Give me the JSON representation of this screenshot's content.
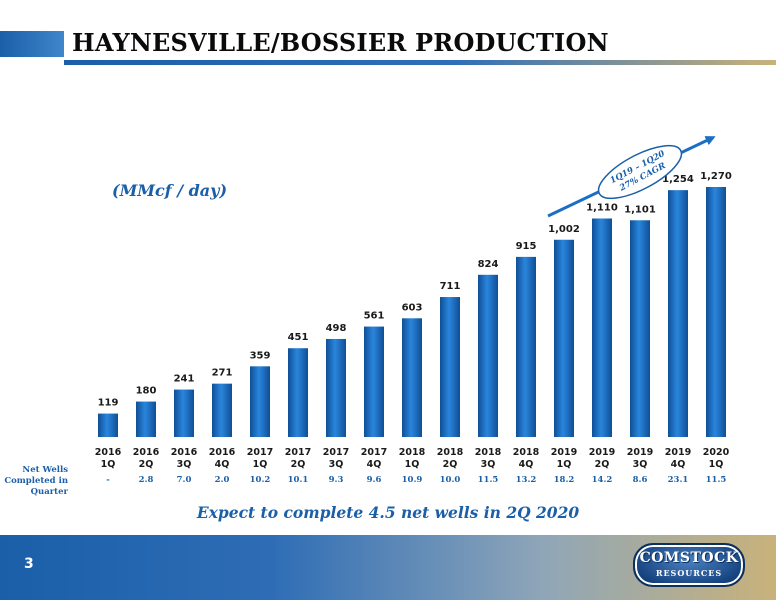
{
  "header": {
    "title": "HAYNESVILLE/BOSSIER PRODUCTION"
  },
  "units_label": "(MMcf / day)",
  "net_wells_label": [
    "Net Wells",
    "Completed in",
    "Quarter"
  ],
  "footnote": "Expect to complete 4.5 net wells in 2Q 2020",
  "page_number": "3",
  "logo": {
    "top": "COMSTOCK",
    "bottom": "RESOURCES"
  },
  "chart_data": {
    "type": "bar",
    "ylabel": "",
    "xlabel": "",
    "ylim": [
      0,
      1400
    ],
    "grid": false,
    "bar_color": "#1a6fc4",
    "categories": [
      [
        "2016",
        "1Q"
      ],
      [
        "2016",
        "2Q"
      ],
      [
        "2016",
        "3Q"
      ],
      [
        "2016",
        "4Q"
      ],
      [
        "2017",
        "1Q"
      ],
      [
        "2017",
        "2Q"
      ],
      [
        "2017",
        "3Q"
      ],
      [
        "2017",
        "4Q"
      ],
      [
        "2018",
        "1Q"
      ],
      [
        "2018",
        "2Q"
      ],
      [
        "2018",
        "3Q"
      ],
      [
        "2018",
        "4Q"
      ],
      [
        "2019",
        "1Q"
      ],
      [
        "2019",
        "2Q"
      ],
      [
        "2019",
        "3Q"
      ],
      [
        "2019",
        "4Q"
      ],
      [
        "2020",
        "1Q"
      ]
    ],
    "values": [
      119,
      180,
      241,
      271,
      359,
      451,
      498,
      561,
      603,
      711,
      824,
      915,
      1002,
      1110,
      1101,
      1254,
      1270
    ],
    "value_labels": [
      "119",
      "180",
      "241",
      "271",
      "359",
      "451",
      "498",
      "561",
      "603",
      "711",
      "824",
      "915",
      "1,002",
      "1,110",
      "1,101",
      "1,254",
      "1,270"
    ],
    "net_wells": [
      "-",
      "2.8",
      "7.0",
      "2.0",
      "10.2",
      "10.1",
      "9.3",
      "9.6",
      "10.9",
      "10.0",
      "11.5",
      "13.2",
      "18.2",
      "14.2",
      "8.6",
      "23.1",
      "11.5"
    ],
    "annotation": {
      "lines": [
        "1Q19 – 1Q20",
        "27% CAGR"
      ],
      "color": "#1a5fa8"
    }
  }
}
